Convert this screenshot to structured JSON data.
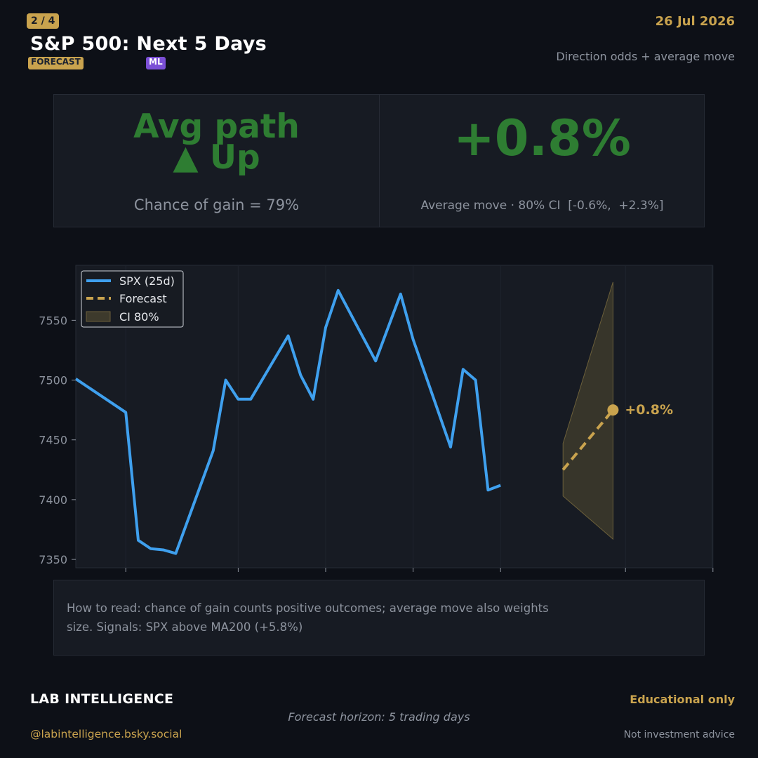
{
  "header": {
    "page_indicator": "2 / 4",
    "title": "S&P 500: Next 5 Days",
    "date": "26 Jul 2026",
    "subtitle": "Direction odds + average move",
    "tags": {
      "forecast": "FORECAST",
      "ml": "ML"
    }
  },
  "kpi": {
    "left_headline_line1": "Avg path",
    "left_headline_line2": "▲ Up",
    "left_caption": "Chance of gain = 79%",
    "right_value": "+0.8%",
    "right_caption": "Average move · 80% CI  [-0.6%,  +2.3%]"
  },
  "colors": {
    "accent_gold": "#c9a34e",
    "positive_green": "#2e7d32",
    "spx_line": "#3fa0ee",
    "forecast_line": "#c9a34e",
    "ci_fill": "#3d3a2c",
    "ml_badge": "#7b4fd6"
  },
  "chart_data": {
    "type": "line",
    "ylim": [
      7343,
      7596
    ],
    "yticks": [
      7350,
      7400,
      7450,
      7500,
      7550
    ],
    "grid": true,
    "legend": {
      "placement": "top-left",
      "entries": [
        "SPX (25d)",
        "Forecast",
        "CI 80%"
      ]
    },
    "series": [
      {
        "name": "SPX (25d)",
        "style": "solid",
        "x": [
          0,
          4,
          5,
          6,
          7,
          8,
          11,
          12,
          13,
          14,
          17,
          18,
          19,
          20,
          21,
          24,
          26,
          27,
          30,
          31,
          32,
          33,
          34
        ],
        "values": [
          7501,
          7473,
          7366,
          7359,
          7358,
          7355,
          7441,
          7500,
          7484,
          7484,
          7537,
          7504,
          7484,
          7544,
          7575,
          7516,
          7572,
          7534,
          7444,
          7509,
          7500,
          7408,
          7412
        ]
      },
      {
        "name": "Forecast",
        "style": "dashed",
        "x": [
          39,
          43
        ],
        "values": [
          7425,
          7475
        ]
      }
    ],
    "ci_band": {
      "name": "CI 80%",
      "x": [
        39,
        43
      ],
      "lower": [
        7403,
        7367
      ],
      "upper": [
        7447,
        7582
      ]
    },
    "annotation": {
      "text": "+0.8%",
      "x": 43,
      "y": 7475
    },
    "x_tick_positions": [
      4,
      13,
      20,
      27,
      34,
      44,
      51
    ]
  },
  "footer": {
    "how_to_read": "How to read: chance of gain counts positive outcomes; average move also weights size. Signals: SPX above MA200 (+5.8%)",
    "brand": "LAB INTELLIGENCE",
    "handle": "@labintelligence.bsky.social",
    "horizon": "Forecast horizon: 5 trading days",
    "educational": "Educational only",
    "not_advice": "Not investment advice"
  }
}
